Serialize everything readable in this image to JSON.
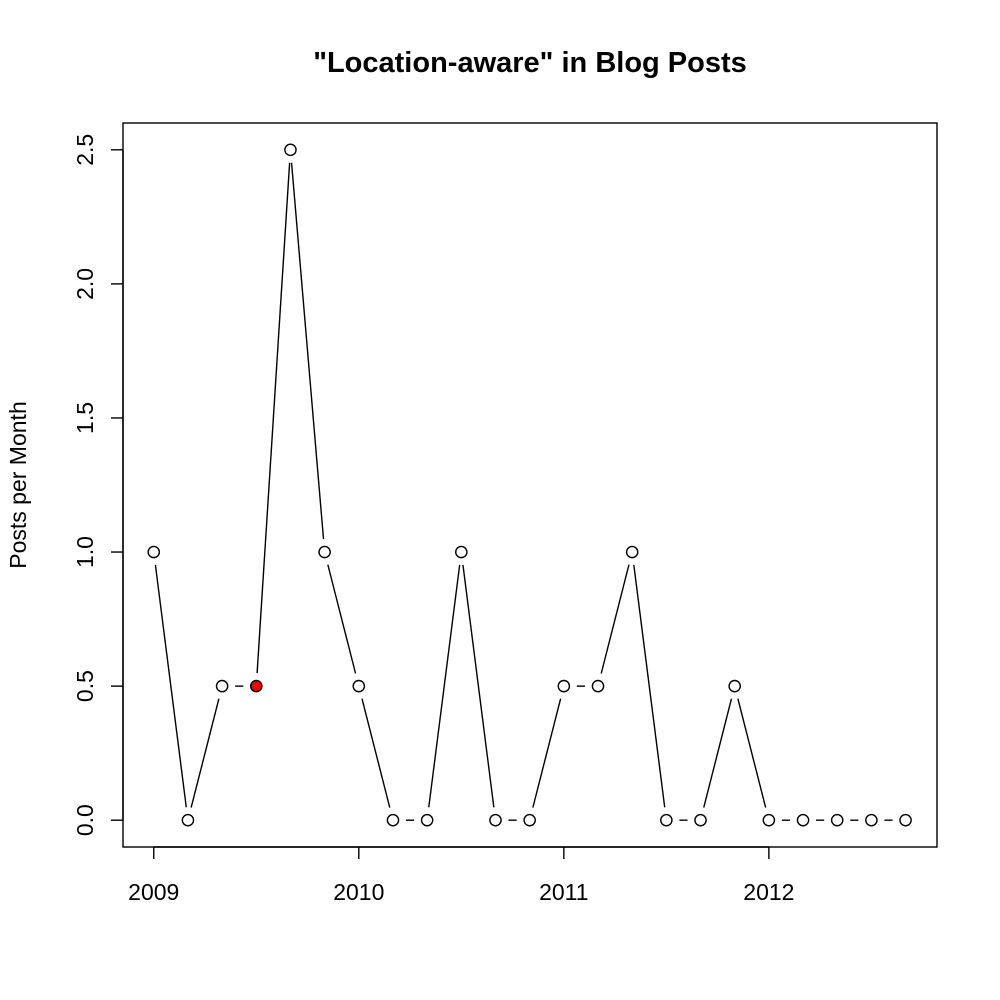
{
  "chart_data": {
    "type": "line",
    "title": "\"Location-aware\" in Blog Posts",
    "xlabel": "",
    "ylabel": "Posts per Month",
    "xlim": [
      2008.85,
      2012.82
    ],
    "ylim": [
      -0.1,
      2.6
    ],
    "x_ticks": [
      {
        "value": 2009,
        "label": "2009"
      },
      {
        "value": 2010,
        "label": "2010"
      },
      {
        "value": 2011,
        "label": "2011"
      },
      {
        "value": 2012,
        "label": "2012"
      }
    ],
    "y_ticks": [
      {
        "value": 0.0,
        "label": "0.0"
      },
      {
        "value": 0.5,
        "label": "0.5"
      },
      {
        "value": 1.0,
        "label": "1.0"
      },
      {
        "value": 1.5,
        "label": "1.5"
      },
      {
        "value": 2.0,
        "label": "2.0"
      },
      {
        "value": 2.5,
        "label": "2.5"
      }
    ],
    "grid": false,
    "series": [
      {
        "x": [
          2009.0,
          2009.1667,
          2009.3333,
          2009.5,
          2009.6667,
          2009.8333,
          2010.0,
          2010.1667,
          2010.3333,
          2010.5,
          2010.6667,
          2010.8333,
          2011.0,
          2011.1667,
          2011.3333,
          2011.5,
          2011.6667,
          2011.8333,
          2012.0,
          2012.1667,
          2012.3333,
          2012.5,
          2012.6667
        ],
        "values": [
          1.0,
          0.0,
          0.5,
          0.5,
          2.5,
          1.0,
          0.5,
          0.0,
          0.0,
          1.0,
          0.0,
          0.0,
          0.5,
          0.5,
          1.0,
          0.0,
          0.0,
          0.5,
          0.0,
          0.0,
          0.0,
          0.0,
          0.0
        ],
        "highlight_index": 3,
        "highlight_color": "#ee0000",
        "point_fill": "#ffffff",
        "line_color": "#000000"
      }
    ]
  }
}
